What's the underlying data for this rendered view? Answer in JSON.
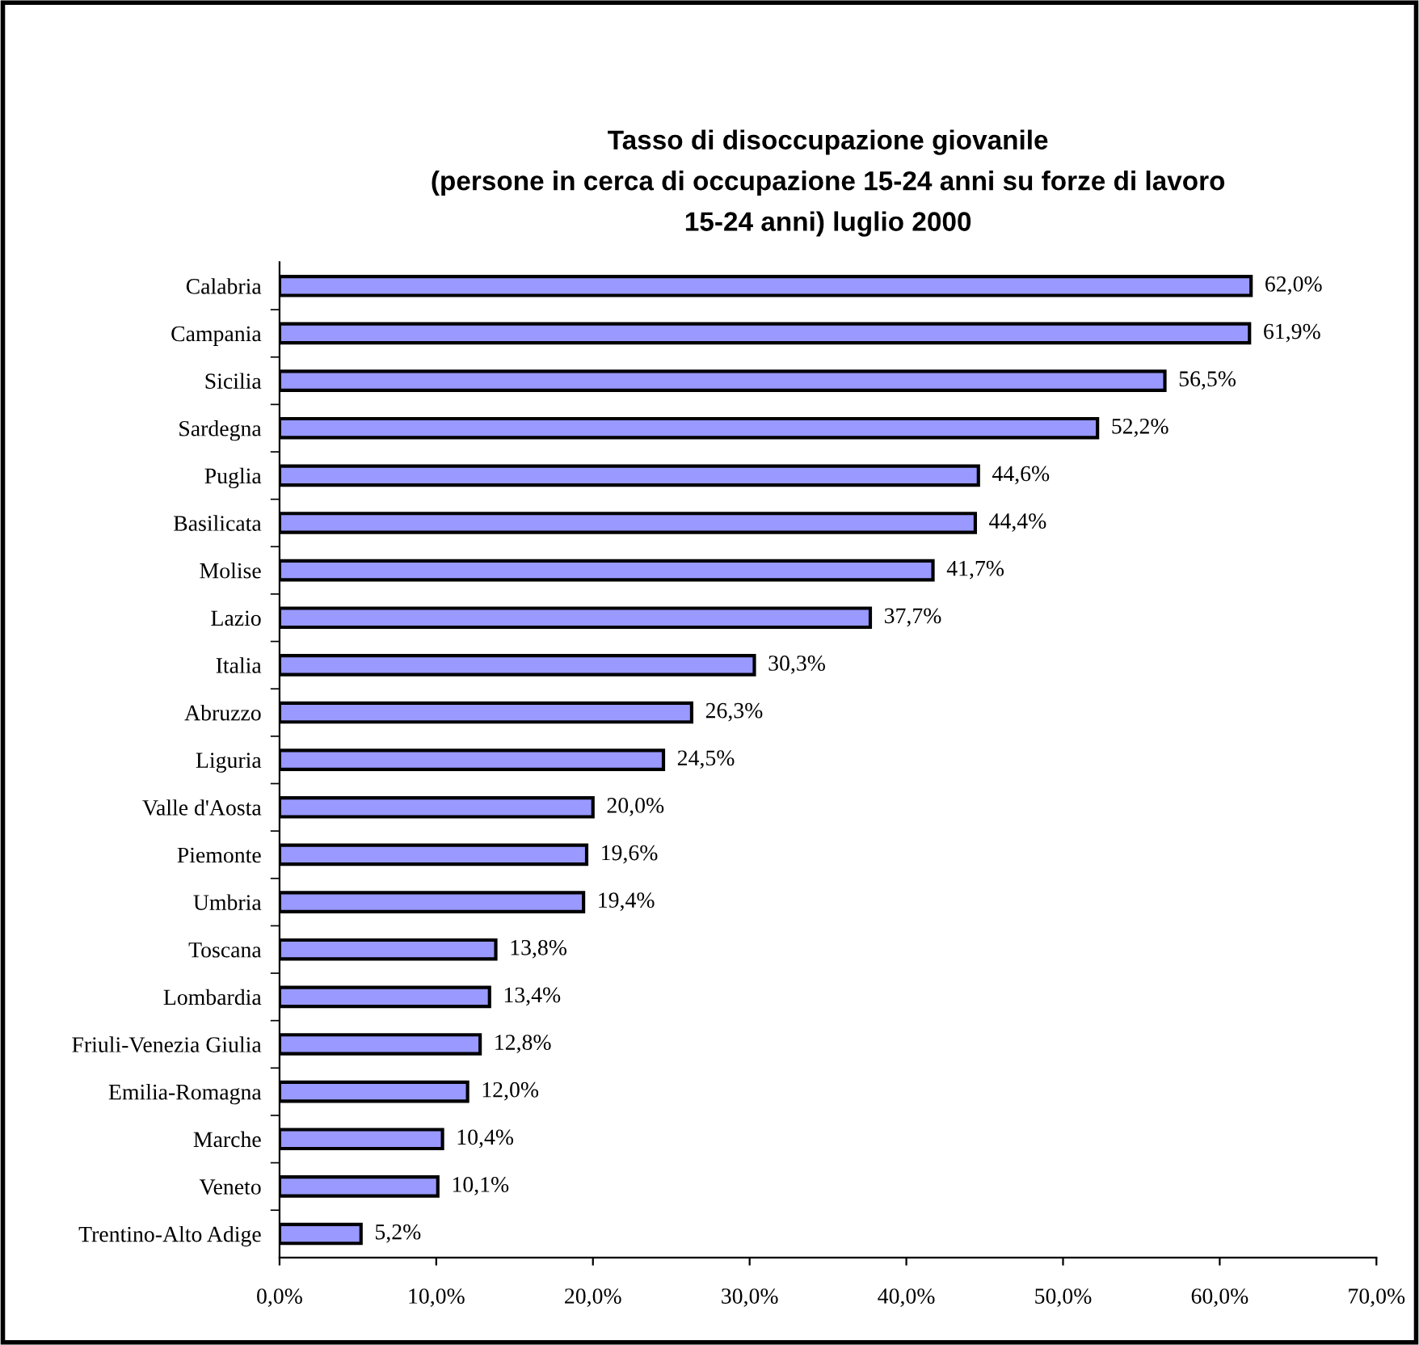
{
  "chart_data": {
    "type": "bar",
    "orientation": "horizontal",
    "title": "Tasso di disoccupazione giovanile\n(persone in cerca di occupazione 15-24 anni su forze di lavoro\n15-24 anni) luglio 2000",
    "categories": [
      "Calabria",
      "Campania",
      "Sicilia",
      "Sardegna",
      "Puglia",
      "Basilicata",
      "Molise",
      "Lazio",
      "Italia",
      "Abruzzo",
      "Liguria",
      "Valle d'Aosta",
      "Piemonte",
      "Umbria",
      "Toscana",
      "Lombardia",
      "Friuli-Venezia Giulia",
      "Emilia-Romagna",
      "Marche",
      "Veneto",
      "Trentino-Alto Adige"
    ],
    "values": [
      62.0,
      61.9,
      56.5,
      52.2,
      44.6,
      44.4,
      41.7,
      37.7,
      30.3,
      26.3,
      24.5,
      20.0,
      19.6,
      19.4,
      13.8,
      13.4,
      12.8,
      12.0,
      10.4,
      10.1,
      5.2
    ],
    "value_labels": [
      "62,0%",
      "61,9%",
      "56,5%",
      "52,2%",
      "44,6%",
      "44,4%",
      "41,7%",
      "37,7%",
      "30,3%",
      "26,3%",
      "24,5%",
      "20,0%",
      "19,6%",
      "19,4%",
      "13,8%",
      "13,4%",
      "12,8%",
      "12,0%",
      "10,4%",
      "10,1%",
      "5,2%"
    ],
    "color": "#9999ff",
    "xlim": [
      0,
      70
    ],
    "xticks": [
      {
        "value": 0,
        "label": "0,0%"
      },
      {
        "value": 10,
        "label": "10,0%"
      },
      {
        "value": 20,
        "label": "20,0%"
      },
      {
        "value": 30,
        "label": "30,0%"
      },
      {
        "value": 40,
        "label": "40,0%"
      },
      {
        "value": 50,
        "label": "50,0%"
      },
      {
        "value": 60,
        "label": "60,0%"
      },
      {
        "value": 70,
        "label": "70,0%"
      }
    ],
    "grid": false
  }
}
